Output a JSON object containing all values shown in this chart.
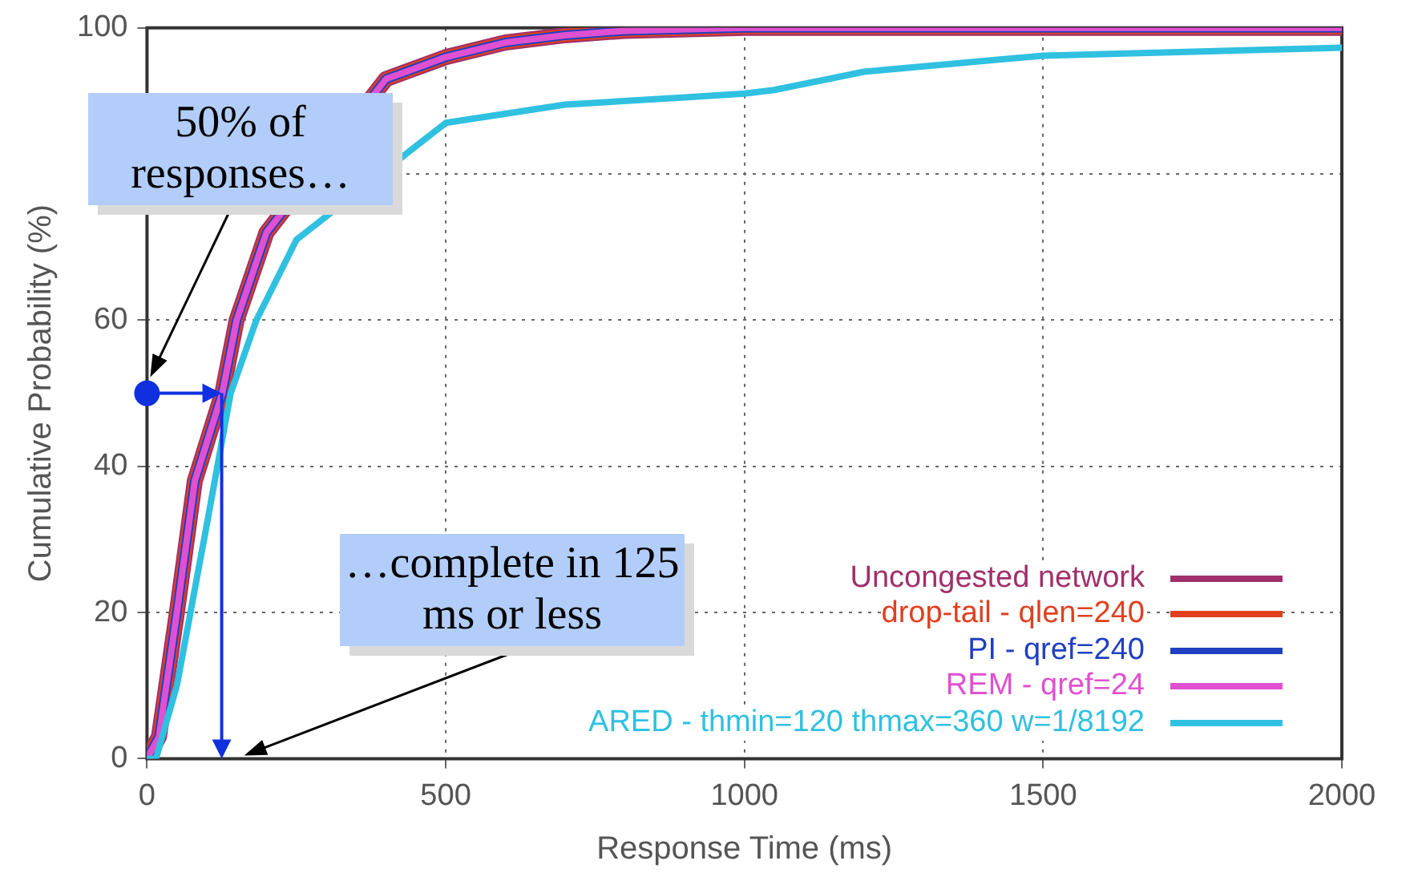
{
  "chart_data": {
    "type": "line",
    "xlabel": "Response Time (ms)",
    "ylabel": "Cumulative Probability (%)",
    "xlim": [
      0,
      2000
    ],
    "xticks": [
      0,
      500,
      1000,
      1500,
      2000
    ],
    "ylim": [
      0,
      100
    ],
    "yticks": [
      0,
      20,
      40,
      60,
      {
        "value": 80,
        "label": null
      },
      100
    ],
    "grid": true,
    "legend": "bottom right",
    "marker": "none",
    "line_style": "solid",
    "series": [
      {
        "name": "Uncongested network",
        "color": "#a0306a",
        "x": [
          0,
          20,
          50,
          80,
          126,
          150,
          200,
          250,
          300,
          400,
          500,
          600,
          700,
          800,
          1000,
          2000
        ],
        "values": [
          0,
          3,
          20,
          38,
          50,
          60,
          72,
          null,
          null,
          93,
          96,
          98,
          99,
          99.6,
          100,
          100
        ]
      },
      {
        "name": "drop-tail - qlen=240",
        "color": "#e04020",
        "x": [
          0,
          20,
          50,
          80,
          126,
          150,
          200,
          250,
          300,
          400,
          500,
          600,
          700,
          800,
          1000,
          2000
        ],
        "values": [
          0,
          3,
          20,
          38,
          50,
          60,
          72,
          null,
          null,
          93,
          96,
          98,
          99,
          99.6,
          100,
          100
        ]
      },
      {
        "name": "PI - qref=240",
        "color": "#2040c0",
        "x": [
          0,
          20,
          50,
          80,
          126,
          150,
          200,
          250,
          300,
          400,
          500,
          600,
          700,
          800,
          1000,
          2000
        ],
        "values": [
          0,
          3,
          20,
          38,
          50,
          60,
          72,
          null,
          null,
          93,
          96,
          98,
          99,
          99.6,
          100,
          100
        ]
      },
      {
        "name": "REM - qref=24",
        "color": "#e050d0",
        "x": [
          0,
          20,
          50,
          80,
          126,
          150,
          200,
          250,
          300,
          400,
          500,
          600,
          700,
          800,
          1000,
          2000
        ],
        "values": [
          0,
          3,
          20,
          38,
          50,
          60,
          72,
          null,
          null,
          93,
          96,
          98,
          99,
          99.6,
          100,
          100
        ]
      },
      {
        "name": "ARED - thmin=120 thmax=360 w=1/8192",
        "color": "#30c0e0",
        "x": [
          0,
          15,
          50,
          100,
          140,
          183,
          250,
          300,
          365,
          500,
          700,
          900,
          1000,
          1050,
          1200,
          1500,
          2000
        ],
        "values": [
          0,
          0,
          10,
          32,
          50,
          60,
          71,
          null,
          null,
          87,
          89.5,
          90.5,
          91,
          91.5,
          94,
          96.2,
          97.3
        ]
      }
    ],
    "annotations": [
      "50% of responses…",
      "…complete in 125 ms or less"
    ]
  }
}
